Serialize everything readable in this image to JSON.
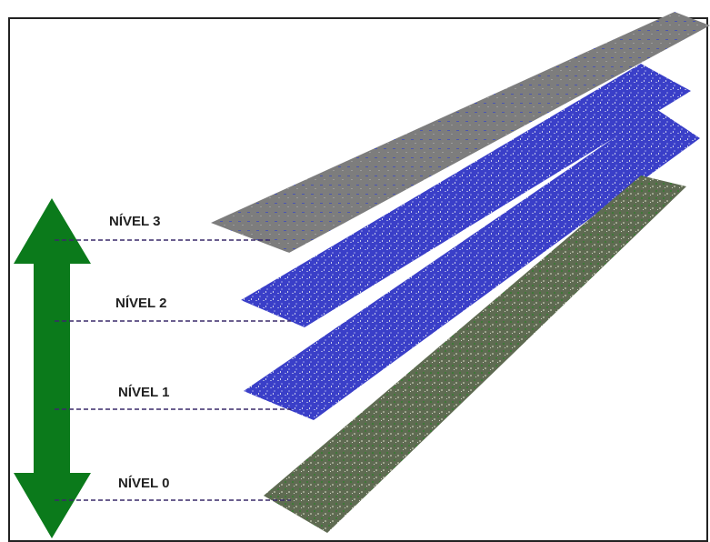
{
  "levels": [
    "NÍVEL 3",
    "NÍVEL 2",
    "NÍVEL 1",
    "NÍVEL 0"
  ]
}
